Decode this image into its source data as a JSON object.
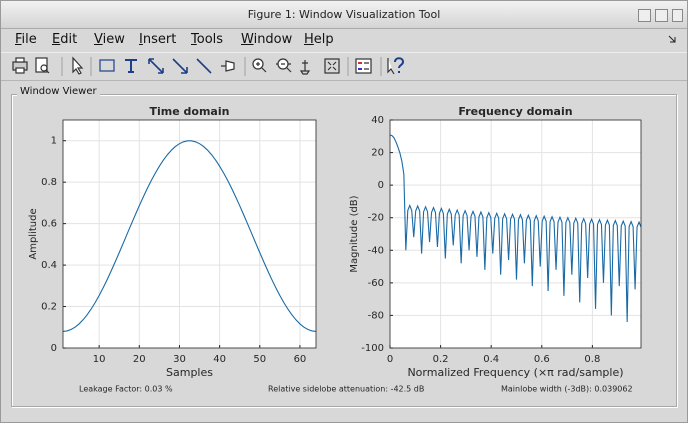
{
  "window_title": "Figure 1: Window Visualization Tool",
  "menu": [
    "File",
    "Edit",
    "View",
    "Insert",
    "Tools",
    "Window",
    "Help"
  ],
  "panel_title": "Window Viewer",
  "chart_data": [
    {
      "type": "line",
      "title": "Time domain",
      "xlabel": "Samples",
      "ylabel": "Amplitude",
      "color": "#1a6aa6",
      "grid": true,
      "xlim": [
        1,
        64
      ],
      "ylim": [
        0,
        1.1
      ],
      "xticks": [
        10,
        20,
        30,
        40,
        50,
        60
      ],
      "yticks": [
        0,
        0.2,
        0.4,
        0.6,
        0.8,
        1
      ],
      "x": [
        1,
        2,
        3,
        4,
        5,
        6,
        7,
        8,
        9,
        10,
        11,
        12,
        13,
        14,
        15,
        16,
        17,
        18,
        19,
        20,
        21,
        22,
        23,
        24,
        25,
        26,
        27,
        28,
        29,
        30,
        31,
        32,
        33,
        34,
        35,
        36,
        37,
        38,
        39,
        40,
        41,
        42,
        43,
        44,
        45,
        46,
        47,
        48,
        49,
        50,
        51,
        52,
        53,
        54,
        55,
        56,
        57,
        58,
        59,
        60,
        61,
        62,
        63,
        64
      ],
      "values": [
        0.08,
        0.0823,
        0.0891,
        0.1004,
        0.1161,
        0.136,
        0.16,
        0.1876,
        0.2188,
        0.2532,
        0.2905,
        0.3301,
        0.372,
        0.4154,
        0.4601,
        0.5056,
        0.5515,
        0.5972,
        0.6424,
        0.6865,
        0.7292,
        0.77,
        0.8085,
        0.8444,
        0.8772,
        0.9067,
        0.9325,
        0.9545,
        0.9723,
        0.9858,
        0.9948,
        0.9994,
        0.9994,
        0.9948,
        0.9858,
        0.9723,
        0.9545,
        0.9325,
        0.9067,
        0.8772,
        0.8444,
        0.8085,
        0.77,
        0.7292,
        0.6865,
        0.6424,
        0.5972,
        0.5515,
        0.5056,
        0.4601,
        0.4154,
        0.372,
        0.3301,
        0.2905,
        0.2532,
        0.2188,
        0.1876,
        0.16,
        0.136,
        0.1161,
        0.1004,
        0.0891,
        0.0823,
        0.08
      ]
    },
    {
      "type": "line",
      "title": "Frequency domain",
      "xlabel": "Normalized Frequency  (×π rad/sample)",
      "ylabel": "Magnitude (dB)",
      "color": "#1a6aa6",
      "grid": true,
      "xlim": [
        0,
        0.9922
      ],
      "ylim": [
        -100,
        40
      ],
      "xticks": [
        0,
        0.2,
        0.4,
        0.6,
        0.8
      ],
      "yticks": [
        -100,
        -80,
        -60,
        -40,
        -20,
        0,
        20,
        40
      ],
      "x": [
        0,
        0.0078,
        0.0156,
        0.0234,
        0.0313,
        0.0391,
        0.0469,
        0.0547,
        0.0625,
        0.0703,
        0.0781,
        0.0859,
        0.0938,
        0.1016,
        0.1094,
        0.1172,
        0.125,
        0.1328,
        0.1406,
        0.1484,
        0.1563,
        0.1641,
        0.1719,
        0.1797,
        0.1875,
        0.1953,
        0.2031,
        0.2109,
        0.2188,
        0.2266,
        0.2344,
        0.2422,
        0.25,
        0.2578,
        0.2656,
        0.2734,
        0.2813,
        0.2891,
        0.2969,
        0.3047,
        0.3125,
        0.3203,
        0.3281,
        0.3359,
        0.3438,
        0.3516,
        0.3594,
        0.3672,
        0.375,
        0.3828,
        0.3906,
        0.3984,
        0.4063,
        0.4141,
        0.4219,
        0.4297,
        0.4375,
        0.4453,
        0.4531,
        0.4609,
        0.4688,
        0.4766,
        0.4844,
        0.4922,
        0.5,
        0.5078,
        0.5156,
        0.5234,
        0.5313,
        0.5391,
        0.5469,
        0.5547,
        0.5625,
        0.5703,
        0.5781,
        0.5859,
        0.5938,
        0.6016,
        0.6094,
        0.6172,
        0.625,
        0.6328,
        0.6406,
        0.6484,
        0.6563,
        0.6641,
        0.6719,
        0.6797,
        0.6875,
        0.6953,
        0.7031,
        0.7109,
        0.7188,
        0.7266,
        0.7344,
        0.7422,
        0.75,
        0.7578,
        0.7656,
        0.7734,
        0.7813,
        0.7891,
        0.7969,
        0.8047,
        0.8125,
        0.8203,
        0.8281,
        0.8359,
        0.8438,
        0.8516,
        0.8594,
        0.8672,
        0.875,
        0.8828,
        0.8906,
        0.8984,
        0.9063,
        0.9141,
        0.9219,
        0.9297,
        0.9375,
        0.9453,
        0.9531,
        0.9609,
        0.9688,
        0.9766,
        0.9844,
        0.9922
      ],
      "values": [
        30.8,
        30.4,
        29.1,
        26.6,
        23.4,
        19.8,
        14.7,
        6.8,
        -40,
        -15.5,
        -12.5,
        -15.5,
        -32,
        -15.8,
        -12.8,
        -15.8,
        -42,
        -16.3,
        -13.3,
        -16.3,
        -35,
        -16.8,
        -13.8,
        -16.8,
        -38,
        -17.3,
        -14.3,
        -17.3,
        -45,
        -17.8,
        -14.8,
        -17.8,
        -37,
        -18.3,
        -15.3,
        -18.3,
        -48,
        -18.7,
        -15.7,
        -18.7,
        -40,
        -19.1,
        -16.1,
        -19.1,
        -44,
        -19.5,
        -16.5,
        -19.5,
        -52,
        -19.9,
        -16.9,
        -19.9,
        -42,
        -20.3,
        -17.3,
        -20.3,
        -55,
        -20.6,
        -17.6,
        -20.6,
        -46,
        -20.9,
        -17.9,
        -20.9,
        -58,
        -21.2,
        -18.2,
        -21.2,
        -48,
        -21.5,
        -18.5,
        -21.5,
        -62,
        -21.8,
        -18.8,
        -21.8,
        -50,
        -22.1,
        -19.1,
        -22.1,
        -65,
        -22.4,
        -19.4,
        -22.4,
        -52,
        -22.7,
        -19.7,
        -22.7,
        -68,
        -23,
        -20,
        -23,
        -55,
        -23.3,
        -20.3,
        -23.3,
        -72,
        -23.6,
        -20.6,
        -23.6,
        -57,
        -23.9,
        -20.9,
        -23.9,
        -76,
        -24.2,
        -21.2,
        -24.2,
        -60,
        -24.5,
        -21.5,
        -24.5,
        -80,
        -24.8,
        -21.8,
        -24.8,
        -62,
        -25.1,
        -22.1,
        -25.1,
        -84,
        -25.4,
        -22.4,
        -25.4,
        -64,
        -25.7,
        -22.7,
        -25.7
      ]
    }
  ],
  "footer": [
    "Leakage Factor: 0.03 %",
    "Relative sidelobe attenuation: -42.5 dB",
    "Mainlobe width (-3dB): 0.039062"
  ]
}
